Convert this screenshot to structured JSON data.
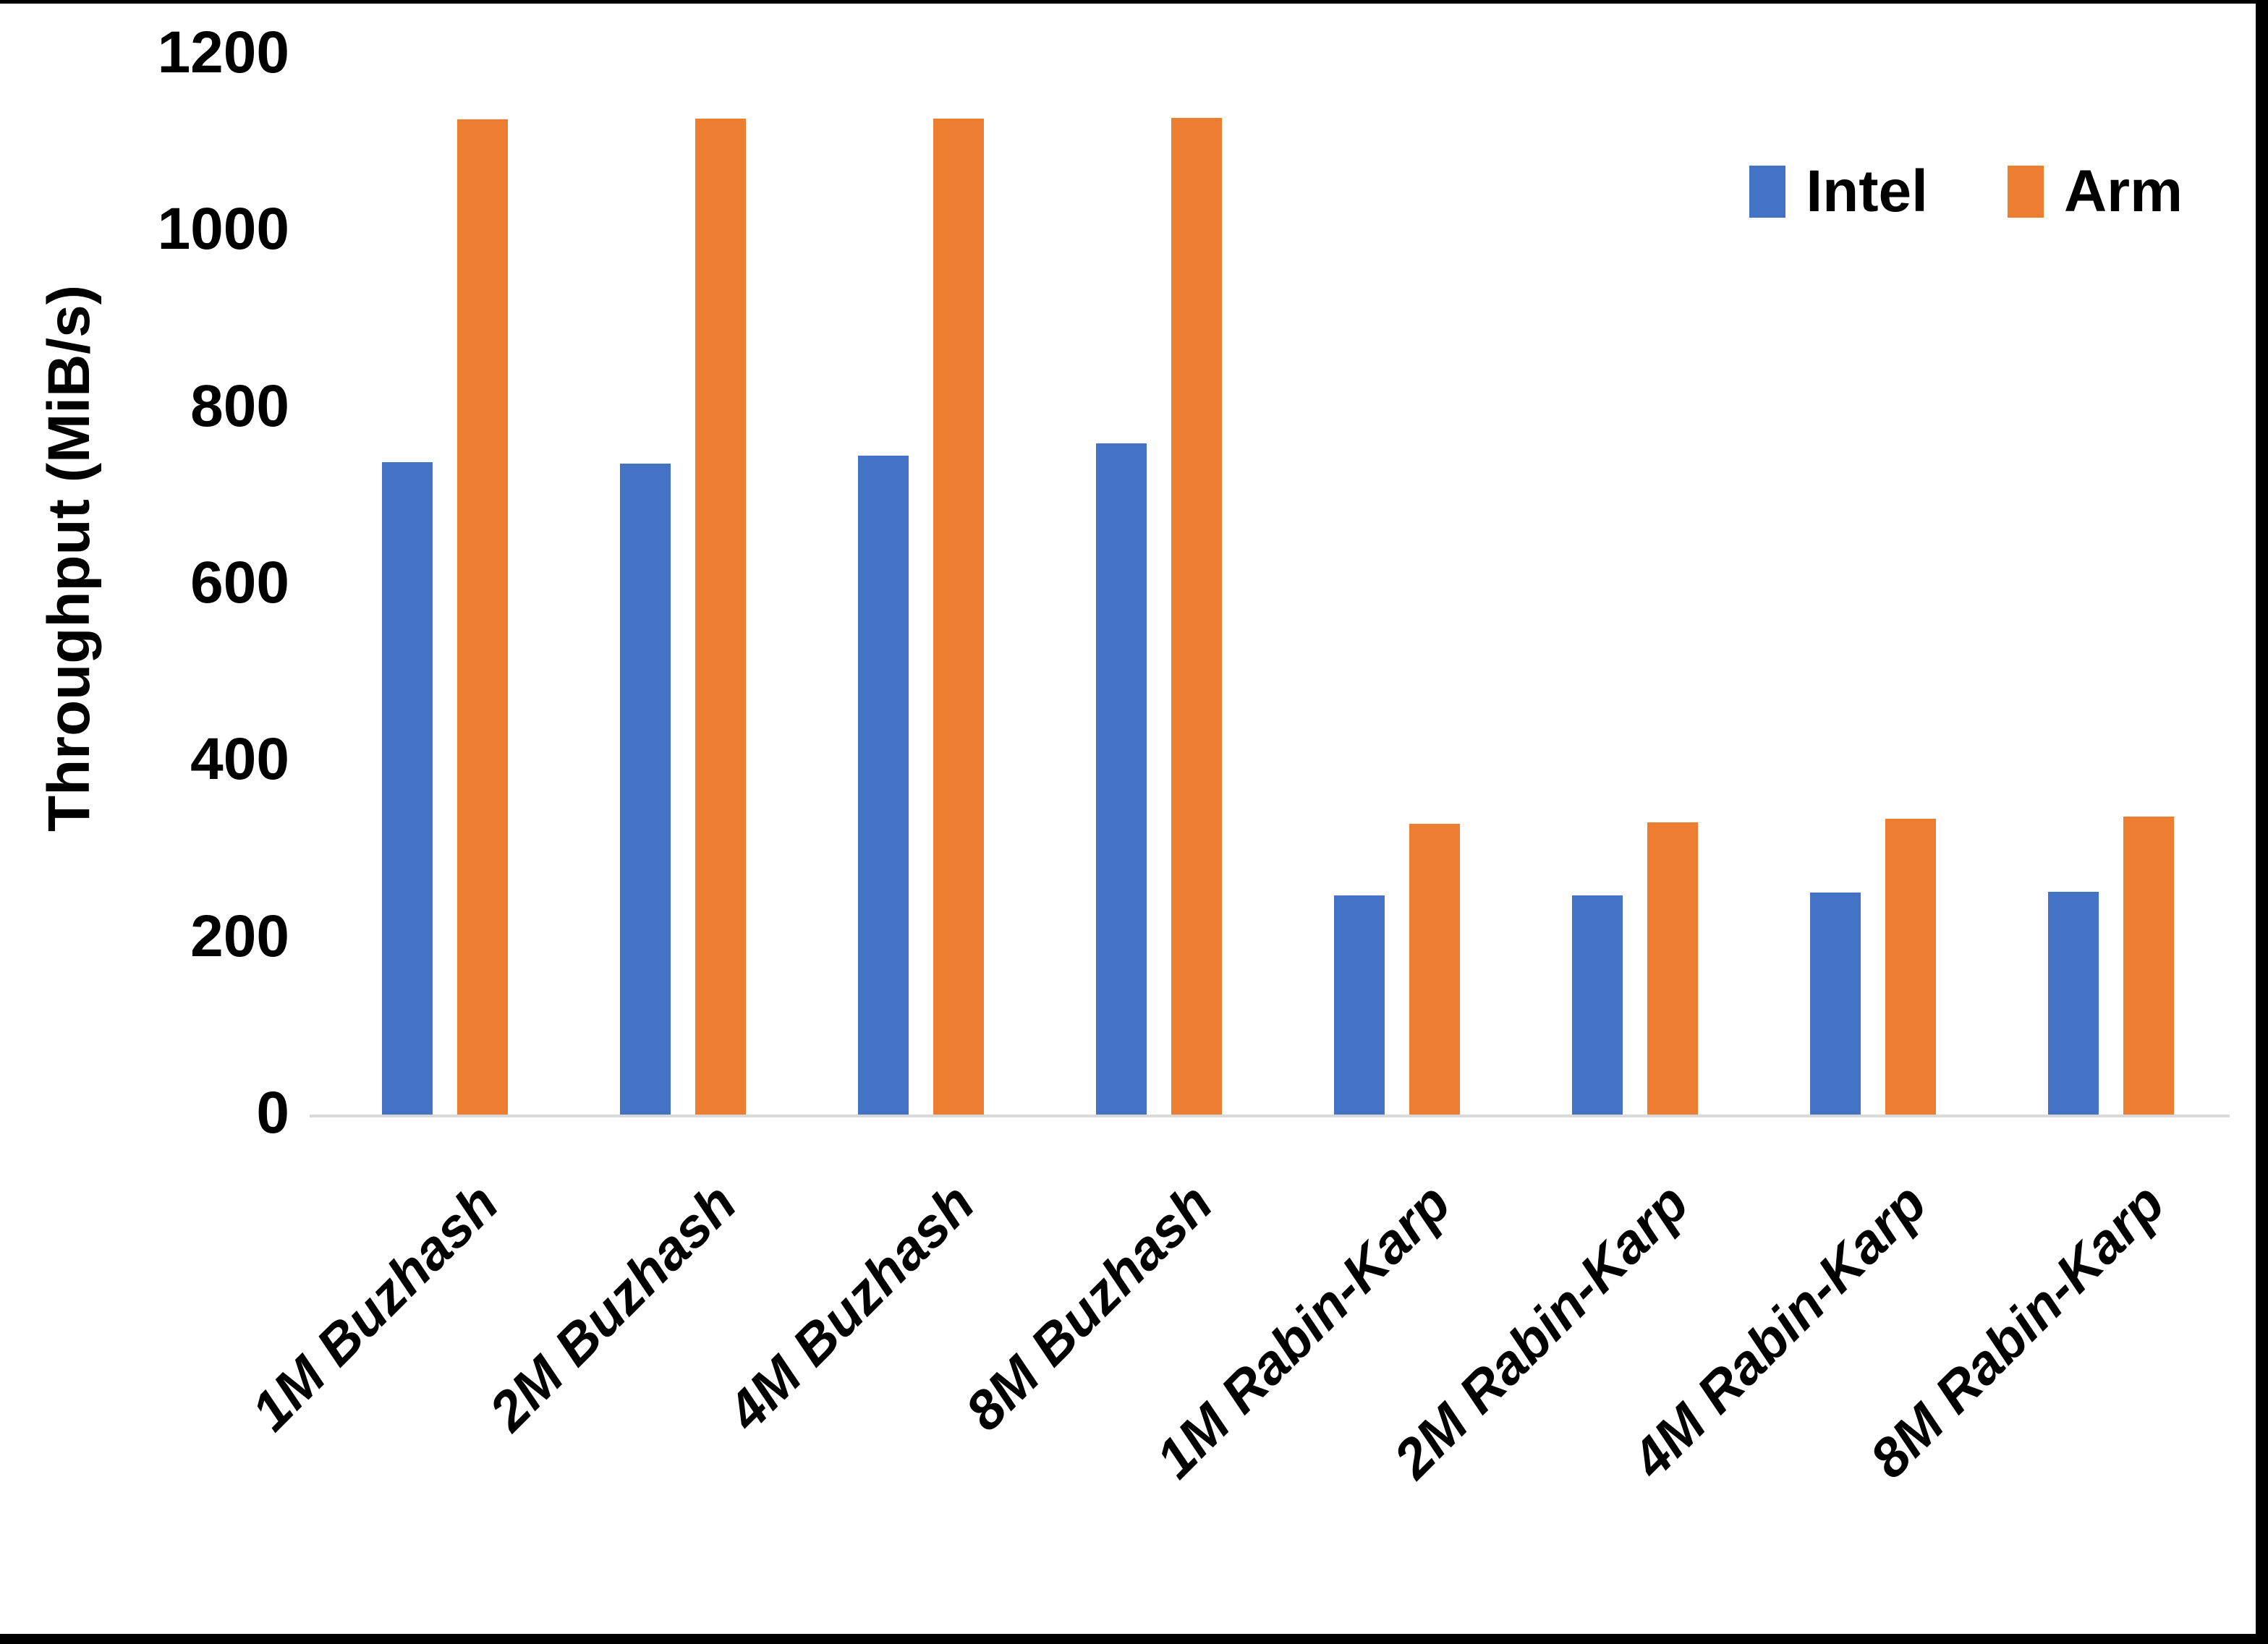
{
  "chart_data": {
    "type": "bar",
    "title": "",
    "xlabel": "",
    "ylabel": "Throughput (MiB/s)",
    "categories": [
      "1M Buzhash",
      "2M Buzhash",
      "4M Buzhash",
      "8M Buzhash",
      "1M Rabin-Karp",
      "2M Rabin-Karp",
      "4M Rabin-Karp",
      "8M Rabin-Karp"
    ],
    "series": [
      {
        "name": "Intel",
        "color": "#4472C4",
        "values": [
          738,
          737,
          746,
          760,
          248,
          248,
          251,
          252
        ]
      },
      {
        "name": "Arm",
        "color": "#ED7D31",
        "values": [
          1126,
          1127,
          1127,
          1128,
          329,
          331,
          335,
          337
        ]
      }
    ],
    "y_axis": {
      "min": 0,
      "max": 1200,
      "step": 200,
      "tick_labels": [
        "0",
        "200",
        "400",
        "600",
        "800",
        "1000",
        "1200"
      ]
    },
    "grid": false,
    "legend_position": "top-right",
    "colors": {
      "text": "#000000",
      "axis_line": "#D9D9D9",
      "background": "#FFFFFF",
      "frame_border": "#000000"
    }
  }
}
